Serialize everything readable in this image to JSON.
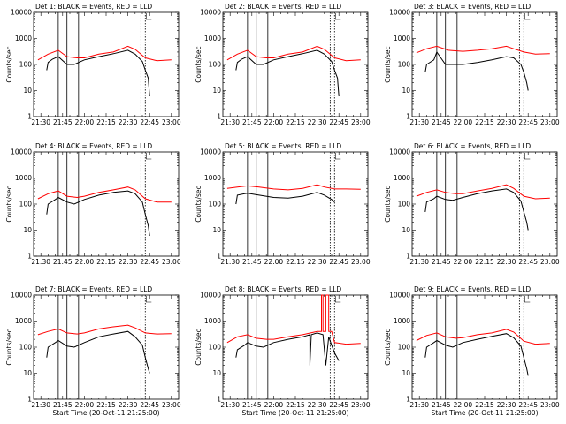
{
  "chart_data": {
    "type": "line",
    "layout": "3x3 grid of panels",
    "x_axis": {
      "label": "Start Time (20-Oct-11 21:25:00)",
      "ticks": [
        "21:30",
        "21:45",
        "22:00",
        "22:15",
        "22:30",
        "22:45",
        "23:00"
      ],
      "range": [
        "21:25",
        "23:05"
      ]
    },
    "y_axis": {
      "label": "Counts/sec",
      "scale": "log",
      "range": [
        1,
        10000
      ],
      "ticks": [
        "1",
        "10",
        "100",
        "1000",
        "10000"
      ]
    },
    "colors": {
      "events": "#000000",
      "lld": "#ff0000"
    },
    "markers": [
      "21:42",
      "21:48",
      "21:56",
      "22:39",
      "22:42"
    ],
    "panels": [
      {
        "title": "Det 1: BLACK = Events, RED = LLD",
        "show_xlabel": false,
        "lld": {
          "x": [
            "21:28",
            "21:35",
            "21:42",
            "21:48",
            "21:55",
            "22:00",
            "22:10",
            "22:20",
            "22:30",
            "22:35",
            "22:42",
            "22:50",
            "23:00"
          ],
          "y": [
            150,
            250,
            350,
            200,
            180,
            180,
            250,
            300,
            500,
            380,
            180,
            140,
            150
          ]
        },
        "events": {
          "x": [
            "21:34",
            "21:35",
            "21:38",
            "21:42",
            "21:48",
            "21:53",
            "22:00",
            "22:10",
            "22:20",
            "22:30",
            "22:35",
            "22:40",
            "22:42",
            "22:44",
            "22:45"
          ],
          "y": [
            60,
            120,
            160,
            200,
            100,
            100,
            150,
            200,
            260,
            350,
            250,
            130,
            60,
            30,
            6
          ]
        }
      },
      {
        "title": "Det 2: BLACK = Events, RED = LLD",
        "show_xlabel": false,
        "lld": {
          "x": [
            "21:28",
            "21:35",
            "21:42",
            "21:48",
            "21:55",
            "22:00",
            "22:10",
            "22:20",
            "22:30",
            "22:35",
            "22:42",
            "22:50",
            "23:00"
          ],
          "y": [
            150,
            250,
            350,
            200,
            180,
            180,
            250,
            300,
            500,
            380,
            180,
            140,
            150
          ]
        },
        "events": {
          "x": [
            "21:34",
            "21:35",
            "21:38",
            "21:42",
            "21:48",
            "21:53",
            "22:00",
            "22:10",
            "22:20",
            "22:30",
            "22:35",
            "22:40",
            "22:42",
            "22:44",
            "22:45"
          ],
          "y": [
            60,
            120,
            160,
            200,
            100,
            100,
            150,
            200,
            260,
            350,
            250,
            130,
            60,
            30,
            6
          ]
        }
      },
      {
        "title": "Det 3: BLACK = Events, RED = LLD",
        "show_xlabel": false,
        "lld": {
          "x": [
            "21:28",
            "21:35",
            "21:42",
            "21:50",
            "22:00",
            "22:10",
            "22:20",
            "22:30",
            "22:35",
            "22:42",
            "22:50",
            "23:00"
          ],
          "y": [
            280,
            400,
            500,
            350,
            320,
            350,
            400,
            500,
            400,
            300,
            250,
            260
          ]
        },
        "events": {
          "x": [
            "21:34",
            "21:35",
            "21:40",
            "21:42",
            "21:48",
            "22:00",
            "22:10",
            "22:20",
            "22:30",
            "22:35",
            "22:40",
            "22:42",
            "22:44",
            "22:45"
          ],
          "y": [
            50,
            100,
            150,
            300,
            100,
            100,
            120,
            150,
            200,
            180,
            100,
            50,
            20,
            10
          ]
        }
      },
      {
        "title": "Det 4: BLACK = Events, RED = LLD",
        "show_xlabel": false,
        "lld": {
          "x": [
            "21:28",
            "21:35",
            "21:42",
            "21:48",
            "21:55",
            "22:00",
            "22:10",
            "22:20",
            "22:30",
            "22:35",
            "22:42",
            "22:50",
            "23:00"
          ],
          "y": [
            160,
            250,
            320,
            200,
            180,
            200,
            280,
            350,
            450,
            350,
            160,
            120,
            120
          ]
        },
        "events": {
          "x": [
            "21:34",
            "21:35",
            "21:40",
            "21:42",
            "21:48",
            "21:53",
            "22:00",
            "22:10",
            "22:20",
            "22:30",
            "22:35",
            "22:40",
            "22:42",
            "22:44",
            "22:45"
          ],
          "y": [
            40,
            100,
            150,
            180,
            120,
            100,
            150,
            220,
            280,
            320,
            250,
            120,
            40,
            15,
            6
          ]
        }
      },
      {
        "title": "Det 5: BLACK = Events, RED = LLD",
        "show_xlabel": false,
        "lld": {
          "x": [
            "21:28",
            "21:35",
            "21:42",
            "21:50",
            "22:00",
            "22:10",
            "22:20",
            "22:30",
            "22:35",
            "22:42",
            "22:50",
            "23:00"
          ],
          "y": [
            400,
            450,
            500,
            450,
            380,
            350,
            400,
            550,
            450,
            380,
            380,
            370
          ]
        },
        "events": {
          "x": [
            "21:34",
            "21:35",
            "21:40",
            "21:42",
            "21:50",
            "22:00",
            "22:10",
            "22:20",
            "22:30",
            "22:35",
            "22:40",
            "22:42"
          ],
          "y": [
            100,
            220,
            250,
            260,
            220,
            180,
            170,
            200,
            280,
            220,
            150,
            120
          ]
        }
      },
      {
        "title": "Det 6: BLACK = Events, RED = LLD",
        "show_xlabel": false,
        "lld": {
          "x": [
            "21:28",
            "21:35",
            "21:42",
            "21:48",
            "21:55",
            "22:00",
            "22:10",
            "22:20",
            "22:30",
            "22:35",
            "22:42",
            "22:50",
            "23:00"
          ],
          "y": [
            200,
            280,
            350,
            280,
            250,
            250,
            320,
            400,
            550,
            400,
            200,
            160,
            170
          ]
        },
        "events": {
          "x": [
            "21:34",
            "21:35",
            "21:40",
            "21:42",
            "21:48",
            "21:53",
            "22:00",
            "22:10",
            "22:20",
            "22:30",
            "22:35",
            "22:40",
            "22:42",
            "22:44",
            "22:45"
          ],
          "y": [
            50,
            120,
            160,
            200,
            150,
            140,
            180,
            250,
            320,
            380,
            280,
            130,
            50,
            20,
            10
          ]
        }
      },
      {
        "title": "Det 7: BLACK = Events, RED = LLD",
        "show_xlabel": true,
        "lld": {
          "x": [
            "21:28",
            "21:35",
            "21:42",
            "21:48",
            "21:55",
            "22:00",
            "22:10",
            "22:20",
            "22:30",
            "22:35",
            "22:42",
            "22:50",
            "23:00"
          ],
          "y": [
            300,
            400,
            500,
            350,
            320,
            350,
            500,
            600,
            700,
            550,
            350,
            320,
            330
          ]
        },
        "events": {
          "x": [
            "21:34",
            "21:35",
            "21:40",
            "21:42",
            "21:48",
            "21:53",
            "22:00",
            "22:10",
            "22:20",
            "22:30",
            "22:35",
            "22:40",
            "22:42",
            "22:44",
            "22:45"
          ],
          "y": [
            40,
            100,
            150,
            180,
            110,
            100,
            150,
            250,
            320,
            400,
            250,
            120,
            40,
            15,
            10
          ]
        }
      },
      {
        "title": "Det 8: BLACK = Events, RED = LLD",
        "show_xlabel": true,
        "lld": {
          "x": [
            "21:28",
            "21:35",
            "21:42",
            "21:48",
            "21:55",
            "22:00",
            "22:10",
            "22:20",
            "22:30",
            "22:33",
            "22:33",
            "22:34",
            "22:34",
            "22:36",
            "22:36",
            "22:38",
            "22:38",
            "22:40",
            "22:42",
            "22:50",
            "23:00"
          ],
          "y": [
            150,
            250,
            300,
            220,
            200,
            200,
            250,
            300,
            400,
            400,
            10000,
            10000,
            400,
            400,
            10000,
            10000,
            400,
            400,
            150,
            130,
            140
          ]
        },
        "events": {
          "x": [
            "21:34",
            "21:35",
            "21:40",
            "21:42",
            "21:48",
            "21:53",
            "22:00",
            "22:10",
            "22:20",
            "22:25",
            "22:25",
            "22:26",
            "22:30",
            "22:34",
            "22:36",
            "22:38",
            "22:40",
            "22:42",
            "22:45"
          ],
          "y": [
            40,
            80,
            120,
            150,
            110,
            100,
            150,
            200,
            250,
            300,
            20,
            300,
            350,
            300,
            20,
            250,
            120,
            60,
            30
          ]
        }
      },
      {
        "title": "Det 9: BLACK = Events, RED = LLD",
        "show_xlabel": true,
        "lld": {
          "x": [
            "21:28",
            "21:35",
            "21:42",
            "21:48",
            "21:55",
            "22:00",
            "22:10",
            "22:20",
            "22:30",
            "22:35",
            "22:42",
            "22:50",
            "23:00"
          ],
          "y": [
            180,
            280,
            350,
            250,
            220,
            230,
            300,
            350,
            480,
            380,
            170,
            130,
            140
          ]
        },
        "events": {
          "x": [
            "21:34",
            "21:35",
            "21:40",
            "21:42",
            "21:48",
            "21:53",
            "22:00",
            "22:10",
            "22:20",
            "22:30",
            "22:35",
            "22:40",
            "22:42",
            "22:44",
            "22:45"
          ],
          "y": [
            40,
            100,
            150,
            180,
            120,
            100,
            150,
            200,
            260,
            330,
            230,
            110,
            40,
            15,
            8
          ]
        }
      }
    ]
  }
}
